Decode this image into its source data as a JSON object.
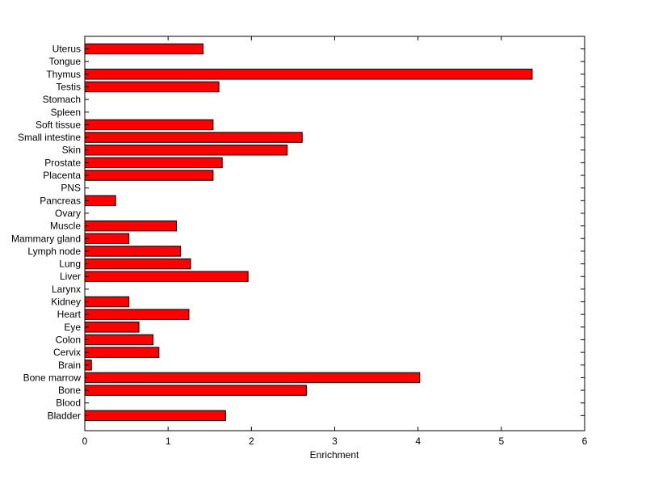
{
  "chart_data": {
    "type": "bar",
    "orientation": "horizontal",
    "categories": [
      "Uterus",
      "Tongue",
      "Thymus",
      "Testis",
      "Stomach",
      "Spleen",
      "Soft tissue",
      "Small intestine",
      "Skin",
      "Prostate",
      "Placenta",
      "PNS",
      "Pancreas",
      "Ovary",
      "Muscle",
      "Mammary gland",
      "Lymph node",
      "Lung",
      "Liver",
      "Larynx",
      "Kidney",
      "Heart",
      "Eye",
      "Colon",
      "Cervix",
      "Brain",
      "Bone marrow",
      "Bone",
      "Blood",
      "Bladder"
    ],
    "values": [
      1.42,
      0,
      5.37,
      1.61,
      0,
      0,
      1.54,
      2.61,
      2.43,
      1.65,
      1.54,
      0,
      0.37,
      0,
      1.1,
      0.53,
      1.15,
      1.27,
      1.96,
      0,
      0.53,
      1.25,
      0.65,
      0.82,
      0.89,
      0.08,
      4.02,
      2.66,
      0,
      1.69
    ],
    "title": "",
    "xlabel": "Enrichment",
    "ylabel": "",
    "xlim": [
      0,
      6
    ],
    "xticks": [
      "0",
      "1",
      "2",
      "3",
      "4",
      "5",
      "6"
    ],
    "grid": false,
    "bar_color": "#ff0000",
    "bar_edge_color": "#000000"
  }
}
